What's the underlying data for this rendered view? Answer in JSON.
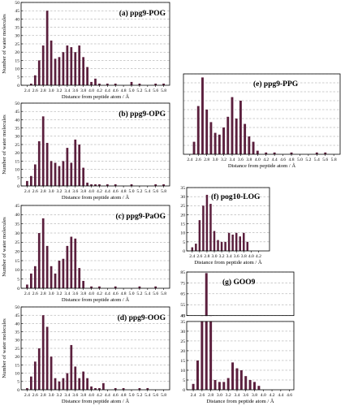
{
  "figure": {
    "bar_color": "#5b1f3d",
    "grid_color": "#9a9a9a"
  },
  "chart_data": [
    {
      "id": "a",
      "type": "bar",
      "title": "(a) ppg9-POG",
      "xlabel": "Distance from peptide atom / Å",
      "ylabel": "Number of water molecules",
      "xlim": [
        2.25,
        5.95
      ],
      "ylim": [
        0,
        50
      ],
      "yticks": [
        0,
        5,
        10,
        15,
        20,
        25,
        30,
        35,
        40,
        45,
        50
      ],
      "xticks": [
        "2.4",
        "2.6",
        "2.8",
        "3.0",
        "3.2",
        "3.4",
        "3.6",
        "3.8",
        "4.0",
        "4.2",
        "4.4",
        "4.6",
        "4.8",
        "5.0",
        "5.2",
        "5.4",
        "5.6",
        "5.8"
      ],
      "grid": true,
      "x": [
        2.5,
        2.6,
        2.7,
        2.8,
        2.9,
        3.0,
        3.1,
        3.2,
        3.3,
        3.4,
        3.5,
        3.6,
        3.7,
        3.8,
        3.9,
        4.0,
        4.1,
        4.2,
        4.4,
        4.6,
        5.0,
        5.2,
        5.6,
        5.8
      ],
      "values": [
        1,
        6,
        15,
        24,
        45,
        27,
        16,
        17,
        20,
        24,
        23,
        20,
        24,
        17,
        11,
        2,
        4,
        1,
        1,
        1,
        2,
        1,
        1,
        1
      ]
    },
    {
      "id": "b",
      "type": "bar",
      "title": "(b) ppg9-OPG",
      "xlabel": "Distance from peptide atom / Å",
      "ylabel": "Number of water molecules",
      "xlim": [
        2.25,
        5.95
      ],
      "ylim": [
        0,
        50
      ],
      "yticks": [
        0,
        5,
        10,
        15,
        20,
        25,
        30,
        35,
        40,
        45,
        50
      ],
      "xticks": [
        "2.4",
        "2.6",
        "2.8",
        "3.0",
        "3.2",
        "3.4",
        "3.6",
        "3.8",
        "4.0",
        "4.2",
        "4.4",
        "4.6",
        "4.8",
        "5.0",
        "5.2",
        "5.4",
        "5.6",
        "5.8"
      ],
      "grid": true,
      "x": [
        2.4,
        2.5,
        2.6,
        2.7,
        2.8,
        2.9,
        3.0,
        3.1,
        3.2,
        3.3,
        3.4,
        3.5,
        3.6,
        3.7,
        3.8,
        3.9,
        4.0,
        4.1,
        4.2,
        4.4,
        4.6,
        5.0,
        5.6,
        5.8
      ],
      "values": [
        3,
        6,
        13,
        27,
        42,
        26,
        15,
        14,
        12,
        15,
        23,
        14,
        28,
        25,
        11,
        2,
        1,
        1,
        1,
        1,
        1,
        1,
        1,
        1
      ]
    },
    {
      "id": "c",
      "type": "bar",
      "title": "(c) ppg9-PaOG",
      "xlabel": "Distance from peptide atom / Å",
      "ylabel": "Number of water molecules",
      "xlim": [
        2.25,
        5.95
      ],
      "ylim": [
        0,
        45
      ],
      "yticks": [
        0,
        5,
        10,
        15,
        20,
        25,
        30,
        35,
        40,
        45
      ],
      "xticks": [
        "2.4",
        "2.6",
        "2.8",
        "3.0",
        "3.2",
        "3.4",
        "3.6",
        "3.8",
        "4.0",
        "4.2",
        "4.4",
        "4.6",
        "4.8",
        "5.0",
        "5.2",
        "5.4",
        "5.6",
        "5.8"
      ],
      "grid": true,
      "x": [
        2.4,
        2.5,
        2.6,
        2.7,
        2.8,
        2.9,
        3.0,
        3.1,
        3.2,
        3.3,
        3.4,
        3.5,
        3.6,
        3.7,
        3.8,
        4.0,
        4.2,
        4.6,
        5.2,
        5.6
      ],
      "values": [
        2,
        8,
        12,
        30,
        38,
        23,
        12,
        8,
        15,
        16,
        23,
        28,
        27,
        11,
        4,
        1,
        1,
        1,
        1,
        1
      ]
    },
    {
      "id": "d",
      "type": "bar",
      "title": "(d) ppg9-OOG",
      "xlabel": "Distance from peptide atom / Å",
      "ylabel": "Number of water molecules",
      "xlim": [
        2.25,
        5.95
      ],
      "ylim": [
        0,
        50
      ],
      "yticks": [
        0,
        5,
        10,
        15,
        20,
        25,
        30,
        35,
        40,
        45,
        50
      ],
      "xticks": [
        "2.4",
        "2.6",
        "2.8",
        "3.0",
        "3.2",
        "3.4",
        "3.6",
        "3.8",
        "4.0",
        "4.2",
        "4.4",
        "4.6",
        "4.8",
        "5.0",
        "5.2",
        "5.4",
        "5.6",
        "5.8"
      ],
      "grid": true,
      "x": [
        2.4,
        2.5,
        2.6,
        2.7,
        2.8,
        2.9,
        3.0,
        3.1,
        3.2,
        3.3,
        3.4,
        3.5,
        3.6,
        3.7,
        3.8,
        3.9,
        4.0,
        4.1,
        4.2,
        4.3,
        4.6,
        4.8,
        5.2,
        5.4
      ],
      "values": [
        1,
        8,
        17,
        25,
        45,
        38,
        20,
        7,
        5,
        7,
        10,
        27,
        14,
        7,
        11,
        7,
        2,
        1,
        1,
        4,
        1,
        1,
        1,
        1
      ]
    },
    {
      "id": "e",
      "type": "bar",
      "title": "(e) ppg9-PPG",
      "xlabel": "Distance from peptide atom / Å",
      "ylabel": "",
      "xlim": [
        2.25,
        5.95
      ],
      "ylim": [
        0,
        45
      ],
      "yticks": [],
      "xticks": [
        "2.4",
        "2.6",
        "2.8",
        "3.0",
        "3.2",
        "3.4",
        "3.6",
        "3.8",
        "4.0",
        "4.2",
        "4.4",
        "4.6",
        "4.8",
        "5.0",
        "5.2",
        "5.4",
        "5.6",
        "5.8"
      ],
      "grid": true,
      "x": [
        2.5,
        2.6,
        2.7,
        2.8,
        2.9,
        3.0,
        3.1,
        3.2,
        3.3,
        3.4,
        3.5,
        3.6,
        3.7,
        3.8,
        3.9,
        4.0,
        4.2,
        4.4,
        4.8,
        5.4,
        5.6
      ],
      "values": [
        7,
        27,
        43,
        25,
        18,
        12,
        11,
        15,
        21,
        32,
        20,
        30,
        17,
        10,
        7,
        2,
        1,
        1,
        1,
        1,
        1
      ]
    },
    {
      "id": "f",
      "type": "bar",
      "title": "(f) pog10-LOG",
      "xlabel": "Distance from peptide atom / Å",
      "ylabel": "",
      "xlim": [
        2.25,
        4.5
      ],
      "ylim": [
        0,
        35
      ],
      "yticks": [
        0,
        5,
        10,
        15,
        20,
        25,
        30,
        35
      ],
      "xticks": [
        "2.4",
        "2.6",
        "2.8",
        "3.0",
        "3.2",
        "3.4",
        "3.6",
        "3.8",
        "4.0",
        "4.2"
      ],
      "grid": true,
      "x": [
        2.4,
        2.5,
        2.6,
        2.7,
        2.8,
        2.9,
        3.0,
        3.1,
        3.2,
        3.3,
        3.4,
        3.5,
        3.6,
        3.7,
        3.8,
        3.9
      ],
      "values": [
        2,
        4,
        17,
        25,
        31,
        26,
        11,
        6,
        5,
        5,
        10,
        9,
        10,
        8,
        10,
        5
      ]
    },
    {
      "id": "g",
      "type": "bar",
      "title": "(g) GOO9",
      "xlabel": "Distance from peptide atom / Å",
      "ylabel": "",
      "xlim": [
        2.25,
        4.7
      ],
      "ylim": [
        0,
        85
      ],
      "yticks": [
        0,
        5,
        10,
        15,
        20,
        25,
        30,
        35,
        40,
        45,
        55,
        65,
        75,
        85
      ],
      "axis_break": [
        35,
        45
      ],
      "xticks": [
        "2.4",
        "2.6",
        "2.8",
        "3.0",
        "3.2",
        "3.4",
        "3.6",
        "3.8",
        "4.0",
        "4.2",
        "4.4",
        "4.6"
      ],
      "grid": true,
      "x": [
        2.4,
        2.5,
        2.6,
        2.7,
        2.8,
        2.9,
        3.0,
        3.1,
        3.2,
        3.3,
        3.4,
        3.5,
        3.6,
        3.7,
        3.8,
        3.9
      ],
      "values": [
        3,
        15,
        45,
        84,
        40,
        5,
        4,
        4,
        6,
        14,
        11,
        10,
        7,
        5,
        4,
        2
      ]
    }
  ]
}
